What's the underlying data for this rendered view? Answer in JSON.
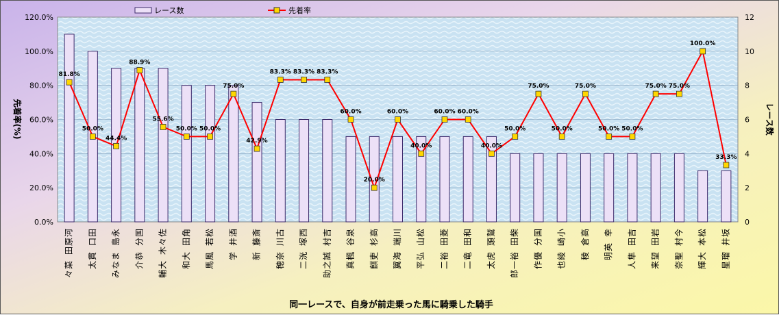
{
  "chart_data": {
    "type": "bar+line",
    "title": "同一レースで、自身が前走乗った馬に騎乗した騎手",
    "ylabel_left": "先着率(%)",
    "ylabel_right": "レース数",
    "ylim_left": [
      0,
      120
    ],
    "ylim_right": [
      0,
      12
    ],
    "yticks_left": [
      "0.0%",
      "20.0%",
      "40.0%",
      "60.0%",
      "80.0%",
      "100.0%",
      "120.0%"
    ],
    "yticks_right": [
      "0",
      "2",
      "4",
      "6",
      "8",
      "10",
      "12"
    ],
    "legend": {
      "placement": "top",
      "bar": "レース数",
      "line": "先着率"
    },
    "colors": {
      "bar_fill": "#ece0f7",
      "bar_stroke": "#3c2a6a",
      "line": "#ff0000",
      "marker": "#ffd700"
    },
    "categories": [
      "河原田 菜々",
      "田口 貫太",
      "永島 まなみ",
      "国分 恭介",
      "佐々木 大輔",
      "角田 大和",
      "松若 風馬",
      "酒井 学",
      "斎藤 新",
      "古川 奈穂",
      "西塚 洸二",
      "吉村 誠之助",
      "泉谷 楓真",
      "高杉 吏麒",
      "川端 海翼",
      "松山 弘平",
      "菱田 裕二",
      "和田 竜二",
      "鷲頭 虎太",
      "柴田 裕一郎",
      "国分 優作",
      "小崎 綾也",
      "高倉 稜",
      "幸 英明",
      "吉田 隼人",
      "岩田 望来",
      "今村 聖奈",
      "松本 大輝",
      "坂井 瑠星"
    ],
    "series": [
      {
        "name": "レース数",
        "type": "bar",
        "axis": "right",
        "values": [
          11,
          10,
          9,
          9,
          9,
          8,
          8,
          8,
          7,
          6,
          6,
          6,
          5,
          5,
          5,
          5,
          5,
          5,
          5,
          4,
          4,
          4,
          4,
          4,
          4,
          4,
          4,
          3,
          3
        ]
      },
      {
        "name": "先着率",
        "type": "line",
        "axis": "left",
        "values": [
          81.8,
          50.0,
          44.4,
          88.9,
          55.6,
          50.0,
          50.0,
          75.0,
          42.9,
          83.3,
          83.3,
          83.3,
          60.0,
          20.0,
          60.0,
          40.0,
          60.0,
          60.0,
          40.0,
          50.0,
          75.0,
          50.0,
          75.0,
          50.0,
          50.0,
          75.0,
          75.0,
          100.0,
          33.3
        ],
        "labels": [
          "81.8%",
          "50.0%",
          "44.4%",
          "88.9%",
          "55.6%",
          "50.0%",
          "50.0%",
          "75.0%",
          "42.9%",
          "83.3%",
          "83.3%",
          "83.3%",
          "60.0%",
          "20.0%",
          "60.0%",
          "40.0%",
          "60.0%",
          "60.0%",
          "40.0%",
          "50.0%",
          "75.0%",
          "50.0%",
          "75.0%",
          "50.0%",
          "50.0%",
          "75.0%",
          "75.0%",
          "100.0%",
          "33.3%"
        ]
      }
    ]
  }
}
